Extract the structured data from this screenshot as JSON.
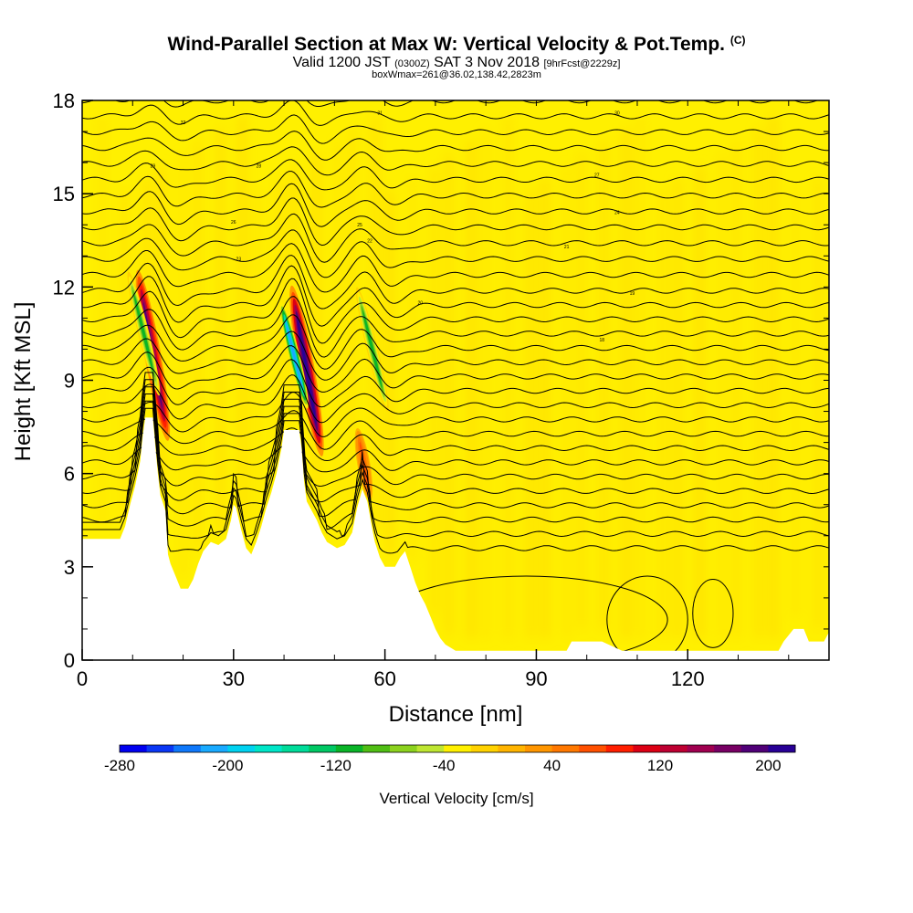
{
  "title": {
    "main": "Wind-Parallel Section at Max W: Vertical Velocity & Pot.Temp.",
    "copyright": "(C)",
    "valid_prefix": "Valid 1200 JST",
    "utc": "(0300Z)",
    "date": "SAT 3 Nov 2018",
    "forecast": "[9hrFcst@2229z]",
    "boxinfo": "boxWmax=261@36.02,138.42,2823m"
  },
  "chart_data": {
    "type": "heatmap",
    "xlabel": "Distance [nm]",
    "ylabel": "Height [Kft MSL]",
    "xlim": [
      0,
      148
    ],
    "ylim": [
      0,
      18
    ],
    "x_ticks": [
      "0",
      "30",
      "60",
      "90",
      "120"
    ],
    "x_tick_values": [
      0,
      30,
      60,
      90,
      120
    ],
    "y_ticks": [
      "0",
      "3",
      "6",
      "9",
      "12",
      "15",
      "18"
    ],
    "y_tick_values": [
      0,
      3,
      6,
      9,
      12,
      15,
      18
    ],
    "terrain_kft": [
      [
        0,
        3.9
      ],
      [
        7.5,
        3.9
      ],
      [
        8.5,
        4.3
      ],
      [
        9.5,
        5.0
      ],
      [
        10.5,
        5.6
      ],
      [
        11.5,
        6.4
      ],
      [
        12,
        7.2
      ],
      [
        12.5,
        7.8
      ],
      [
        14,
        7.8
      ],
      [
        14.5,
        6.9
      ],
      [
        15,
        6.0
      ],
      [
        15.5,
        5.3
      ],
      [
        16.5,
        4.8
      ],
      [
        17,
        3.4
      ],
      [
        17.5,
        3.1
      ],
      [
        18.5,
        2.7
      ],
      [
        19.5,
        2.3
      ],
      [
        21,
        2.3
      ],
      [
        22,
        2.6
      ],
      [
        23,
        3.1
      ],
      [
        24,
        3.5
      ],
      [
        25.5,
        3.8
      ],
      [
        27,
        3.7
      ],
      [
        28.5,
        3.9
      ],
      [
        29.5,
        4.5
      ],
      [
        30,
        5.0
      ],
      [
        30.5,
        4.9
      ],
      [
        31.5,
        4.2
      ],
      [
        32.5,
        3.6
      ],
      [
        33.5,
        3.4
      ],
      [
        34.5,
        3.8
      ],
      [
        35.5,
        4.3
      ],
      [
        36.5,
        4.9
      ],
      [
        37.5,
        5.4
      ],
      [
        38.5,
        6.0
      ],
      [
        39.5,
        6.8
      ],
      [
        40,
        7.4
      ],
      [
        43,
        7.4
      ],
      [
        43.5,
        6.8
      ],
      [
        44,
        5.7
      ],
      [
        44.5,
        5.1
      ],
      [
        45.5,
        4.8
      ],
      [
        46.5,
        4.5
      ],
      [
        47.5,
        4.1
      ],
      [
        48.5,
        3.8
      ],
      [
        50.5,
        3.6
      ],
      [
        52,
        3.7
      ],
      [
        53.5,
        4.1
      ],
      [
        54.5,
        4.9
      ],
      [
        55.5,
        5.5
      ],
      [
        56.5,
        5.1
      ],
      [
        57.5,
        4.2
      ],
      [
        58,
        3.8
      ],
      [
        59,
        3.3
      ],
      [
        60,
        3.0
      ],
      [
        62,
        3.0
      ],
      [
        63,
        3.3
      ],
      [
        64,
        3.5
      ],
      [
        65,
        3.0
      ],
      [
        66,
        2.5
      ],
      [
        67,
        2.1
      ],
      [
        68,
        1.8
      ],
      [
        69,
        1.4
      ],
      [
        70,
        1.0
      ],
      [
        71,
        0.7
      ],
      [
        72,
        0.5
      ],
      [
        73,
        0.4
      ],
      [
        74,
        0.3
      ],
      [
        96,
        0.3
      ],
      [
        97,
        0.6
      ],
      [
        103,
        0.6
      ],
      [
        107,
        0.3
      ],
      [
        138,
        0.3
      ],
      [
        139,
        0.6
      ],
      [
        141,
        1.0
      ],
      [
        143,
        1.0
      ],
      [
        144,
        0.6
      ],
      [
        147,
        0.6
      ],
      [
        148,
        0.9
      ]
    ],
    "colorbar": {
      "label": "Vertical Velocity [cm/s]",
      "tick_labels": [
        "-280",
        "-200",
        "-120",
        "-40",
        "40",
        "120",
        "200"
      ],
      "tick_values": [
        -280,
        -200,
        -120,
        -40,
        40,
        120,
        200
      ],
      "range": [
        -280,
        220
      ],
      "colors": [
        "#0000f0",
        "#0a37f5",
        "#0f78fa",
        "#19aaff",
        "#00d2f0",
        "#00e6c8",
        "#00dc9a",
        "#00c864",
        "#0ab428",
        "#50be14",
        "#8cd21e",
        "#bee632",
        "#fff000",
        "#ffd200",
        "#ffb400",
        "#ff9600",
        "#ff7800",
        "#ff5000",
        "#ff1e00",
        "#dc0014",
        "#be0032",
        "#a00050",
        "#780064",
        "#500078",
        "#280096"
      ]
    },
    "updrafts": [
      {
        "x": 14.0,
        "z": 9.8,
        "max_cm_s": 180
      },
      {
        "x": 44.5,
        "z": 9.3,
        "max_cm_s": 220
      },
      {
        "x": 55.8,
        "z": 6.3,
        "max_cm_s": 70
      }
    ],
    "downdrafts": [
      {
        "x": 12.2,
        "z": 10.5,
        "min_cm_s": -110
      },
      {
        "x": 42.0,
        "z": 9.8,
        "min_cm_s": -220
      },
      {
        "x": 57.5,
        "z": 10.0,
        "min_cm_s": -120
      }
    ],
    "isentrope_labels": [
      "32",
      "31",
      "30",
      "29",
      "28",
      "27",
      "26",
      "25",
      "24",
      "23",
      "22",
      "21",
      "20",
      "19",
      "18"
    ]
  }
}
